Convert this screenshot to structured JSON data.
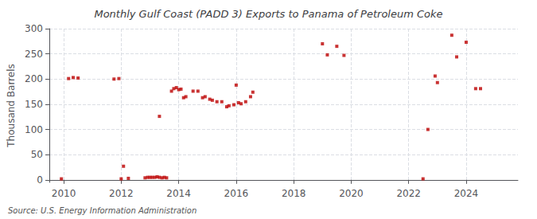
{
  "chart_data": {
    "type": "scatter",
    "title": "Monthly Gulf Coast (PADD 3) Exports to Panama of Petroleum Coke",
    "ylabel": "Thousand Barrels",
    "annotation": "Source: U.S. Energy Information Administration",
    "color": "#bb0000",
    "marker": "square",
    "grid": true,
    "xlim": [
      2009.5,
      2025.8
    ],
    "ylim": [
      -5,
      300
    ],
    "xticks": [
      2010,
      2012,
      2014,
      2016,
      2018,
      2020,
      2022,
      2024
    ],
    "yticks": [
      0,
      50,
      100,
      150,
      200,
      250,
      300
    ],
    "x": [
      2009.92,
      2010.17,
      2010.33,
      2010.5,
      2011.75,
      2011.92,
      2012.08,
      2012.0,
      2012.25,
      2012.83,
      2012.92,
      2013.0,
      2013.08,
      2013.17,
      2013.25,
      2013.33,
      2013.42,
      2013.5,
      2013.58,
      2013.33,
      2013.75,
      2013.83,
      2013.92,
      2014.0,
      2014.08,
      2014.17,
      2014.25,
      2014.5,
      2014.67,
      2014.83,
      2014.92,
      2015.08,
      2015.17,
      2015.33,
      2015.5,
      2015.67,
      2015.75,
      2015.92,
      2016.0,
      2016.08,
      2016.17,
      2016.33,
      2016.5,
      2016.58,
      2019.0,
      2019.17,
      2019.5,
      2019.75,
      2022.5,
      2022.67,
      2022.92,
      2023.0,
      2023.5,
      2023.67,
      2024.0,
      2024.33,
      2024.5
    ],
    "values": [
      2,
      201,
      203,
      202,
      200,
      201,
      27,
      2,
      3,
      4,
      5,
      5,
      5,
      5,
      6,
      5,
      4,
      5,
      4,
      126,
      176,
      181,
      183,
      179,
      180,
      163,
      165,
      176,
      176,
      163,
      165,
      160,
      158,
      155,
      155,
      145,
      147,
      149,
      188,
      153,
      151,
      155,
      165,
      174,
      270,
      248,
      265,
      247,
      2,
      100,
      206,
      193,
      287,
      244,
      273,
      181,
      181
    ]
  }
}
